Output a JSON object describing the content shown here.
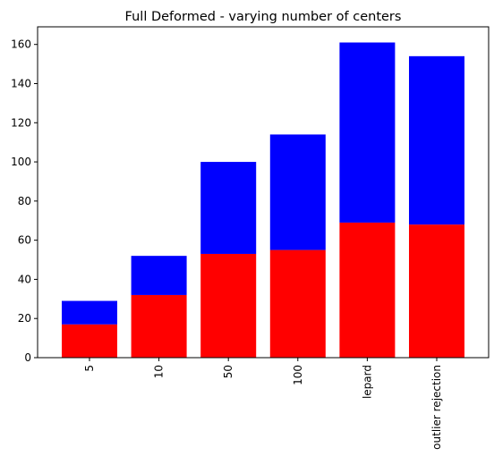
{
  "chart_data": {
    "type": "bar",
    "stacked": true,
    "title": "Full Deformed - varying number of centers",
    "xlabel": "",
    "ylabel": "",
    "categories": [
      "5",
      "10",
      "50",
      "100",
      "lepard",
      "outlier rejection"
    ],
    "series": [
      {
        "values": [
          17,
          32,
          53,
          55,
          69,
          68
        ],
        "color": "#ff0000"
      },
      {
        "values": [
          12,
          20,
          47,
          59,
          92,
          86
        ],
        "color": "#0000ff"
      }
    ],
    "totals": [
      29,
      52,
      100,
      114,
      161,
      154
    ],
    "ylim": [
      0,
      169
    ],
    "yticks": [
      0,
      20,
      40,
      60,
      80,
      100,
      120,
      140,
      160
    ],
    "grid": false,
    "legend": "none"
  }
}
